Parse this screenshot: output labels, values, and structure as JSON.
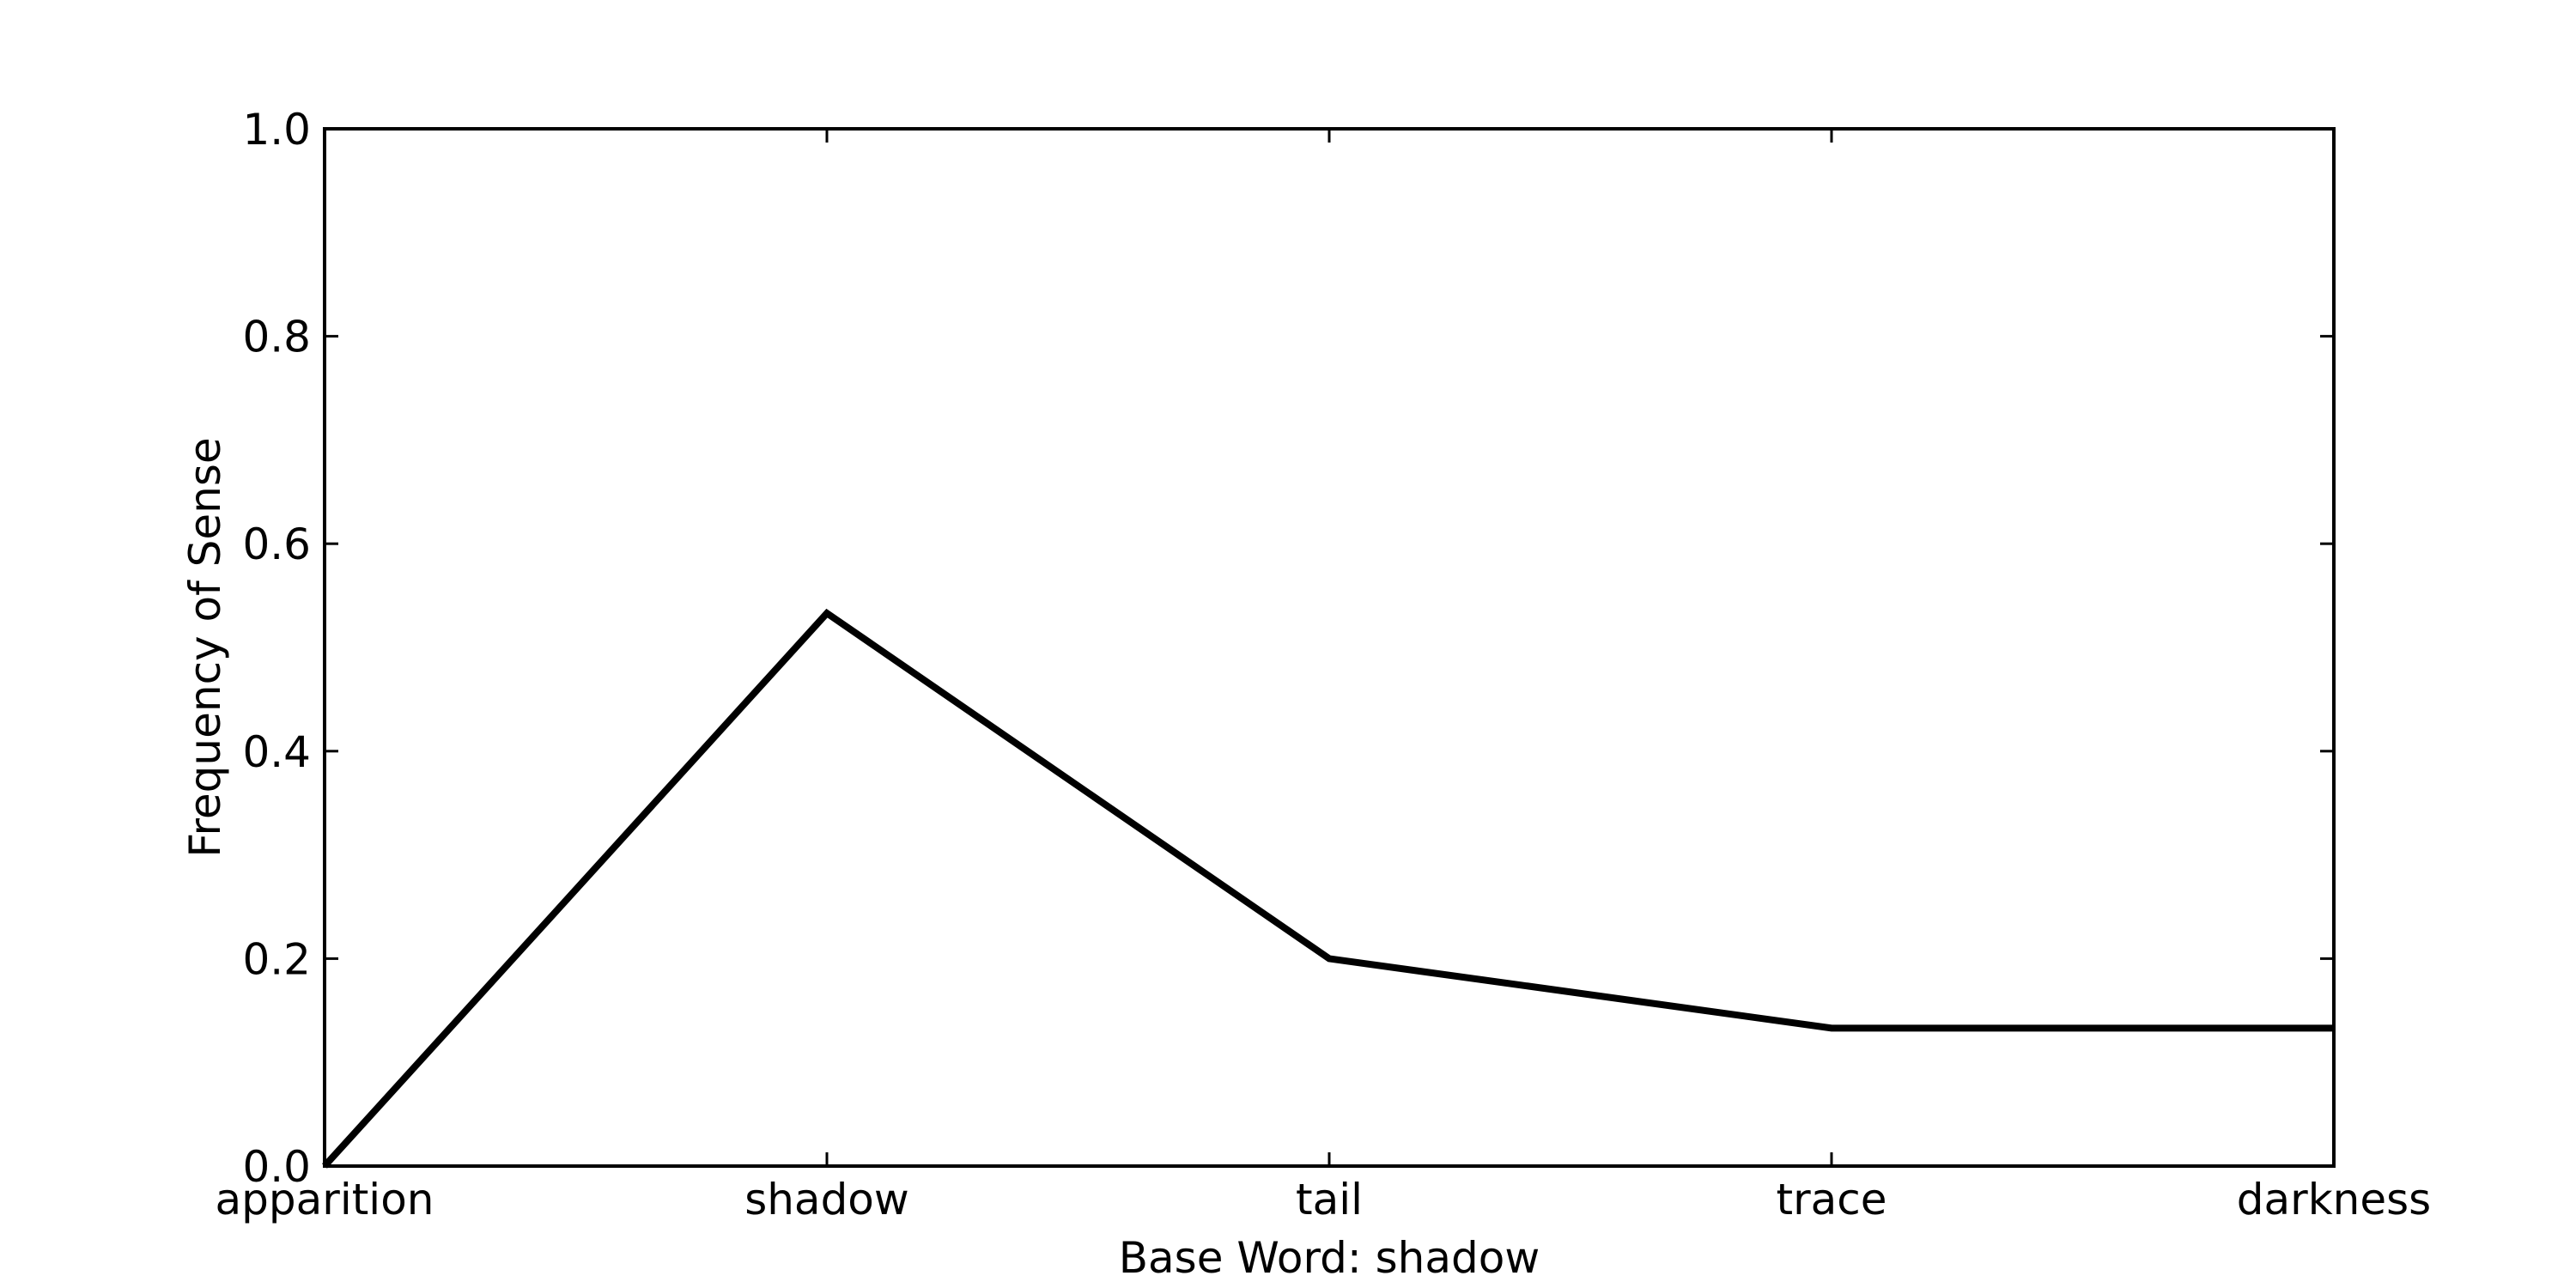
{
  "chart_data": {
    "type": "line",
    "categories": [
      "apparition",
      "shadow",
      "tail",
      "trace",
      "darkness"
    ],
    "series": [
      {
        "values": [
          0.0,
          0.533,
          0.2,
          0.133,
          0.133
        ]
      }
    ],
    "xlabel": "Base Word: shadow",
    "ylabel": "Frequency of Sense",
    "ylim": [
      0.0,
      1.0
    ],
    "yticks": [
      "0.0",
      "0.2",
      "0.4",
      "0.6",
      "0.8",
      "1.0"
    ],
    "grid": false,
    "legend": "none",
    "line_color": "#000000"
  }
}
